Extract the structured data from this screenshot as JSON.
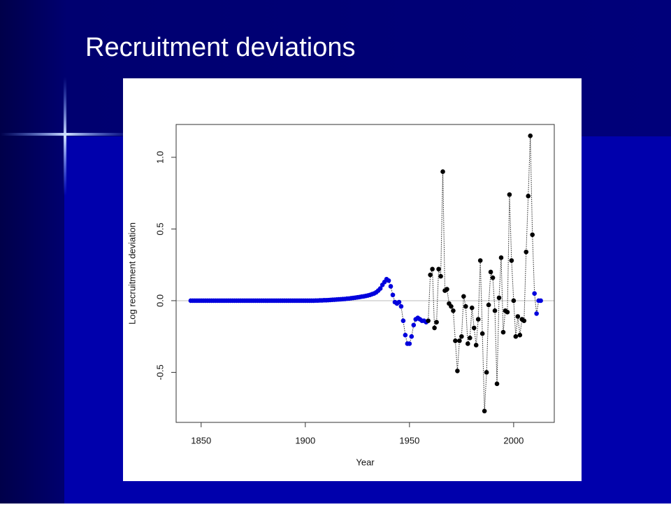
{
  "chart_data": {
    "type": "scatter",
    "title": "Recruitment deviations",
    "xlabel": "Year",
    "ylabel": "Log recruitment deviation",
    "xlim": [
      1838,
      2019.5
    ],
    "ylim": [
      -0.849,
      1.229
    ],
    "xticks": [
      1850,
      1900,
      1950,
      2000
    ],
    "yticks": [
      -0.5,
      {
        "value": 0,
        "label": "0.0"
      },
      0.5,
      {
        "value": 1,
        "label": "1.0"
      }
    ],
    "series": [
      {
        "color": "#0000dd",
        "x": [
          1845,
          1846,
          1847,
          1848,
          1849,
          1850,
          1851,
          1852,
          1853,
          1854,
          1855,
          1856,
          1857,
          1858,
          1859,
          1860,
          1861,
          1862,
          1863,
          1864,
          1865,
          1866,
          1867,
          1868,
          1869,
          1870,
          1871,
          1872,
          1873,
          1874,
          1875,
          1876,
          1877,
          1878,
          1879,
          1880,
          1881,
          1882,
          1883,
          1884,
          1885,
          1886,
          1887,
          1888,
          1889,
          1890,
          1891,
          1892,
          1893,
          1894,
          1895,
          1896,
          1897,
          1898,
          1899,
          1900,
          1901,
          1902,
          1903,
          1904,
          1905,
          1906,
          1907,
          1908,
          1909,
          1910,
          1911,
          1912,
          1913,
          1914,
          1915,
          1916,
          1917,
          1918,
          1919,
          1920,
          1921,
          1922,
          1923,
          1924,
          1925,
          1926,
          1927,
          1928,
          1929,
          1930,
          1931,
          1932,
          1933,
          1934,
          1935,
          1936,
          1937,
          1938,
          1939,
          1940,
          1941,
          1942,
          1943,
          1944,
          1945,
          1946,
          1947,
          1948,
          1949,
          1950,
          1951,
          1952,
          1953,
          1954,
          1955,
          1956,
          1957,
          1958
        ],
        "values": [
          0,
          0,
          0,
          0,
          0,
          0,
          0,
          0,
          0,
          0,
          0,
          0,
          0,
          0,
          0,
          0,
          0,
          0,
          0,
          0,
          0,
          0,
          0,
          0,
          0,
          0,
          0,
          0,
          0,
          0,
          0,
          0,
          0,
          0,
          0,
          0,
          0,
          0,
          0,
          0,
          0,
          0,
          0,
          0,
          0,
          0,
          0,
          0,
          0,
          0,
          0,
          0,
          0,
          0,
          0,
          0,
          0,
          0,
          0,
          0,
          0.001,
          0.001,
          0.002,
          0.002,
          0.003,
          0.003,
          0.004,
          0.005,
          0.006,
          0.007,
          0.008,
          0.009,
          0.01,
          0.011,
          0.012,
          0.014,
          0.015,
          0.017,
          0.019,
          0.021,
          0.023,
          0.025,
          0.028,
          0.03,
          0.033,
          0.036,
          0.04,
          0.045,
          0.05,
          0.058,
          0.07,
          0.085,
          0.11,
          0.13,
          0.15,
          0.14,
          0.1,
          0.04,
          -0.01,
          -0.02,
          -0.01,
          -0.04,
          -0.14,
          -0.24,
          -0.3,
          -0.3,
          -0.25,
          -0.17,
          -0.13,
          -0.12,
          -0.13,
          -0.14,
          -0.14,
          -0.15
        ]
      },
      {
        "color": "#000000",
        "x": [
          1959,
          1960,
          1961,
          1962,
          1963,
          1964,
          1965,
          1966,
          1967,
          1968,
          1969,
          1970,
          1971,
          1972,
          1973,
          1974,
          1975,
          1976,
          1977,
          1978,
          1979,
          1980,
          1981,
          1982,
          1983,
          1984,
          1985,
          1986,
          1987,
          1988,
          1989,
          1990,
          1991,
          1992,
          1993,
          1994,
          1995,
          1996,
          1997,
          1998,
          1999,
          2000,
          2001,
          2002,
          2003,
          2004,
          2005,
          2006,
          2007,
          2008,
          2009
        ],
        "values": [
          -0.14,
          0.18,
          0.22,
          -0.19,
          -0.15,
          0.22,
          0.17,
          0.9,
          0.07,
          0.08,
          -0.02,
          -0.04,
          -0.07,
          -0.28,
          -0.49,
          -0.28,
          -0.25,
          0.03,
          -0.04,
          -0.3,
          -0.26,
          -0.05,
          -0.19,
          -0.31,
          -0.13,
          0.28,
          -0.23,
          -0.77,
          -0.5,
          -0.03,
          0.2,
          0.16,
          -0.07,
          -0.58,
          0.02,
          0.3,
          -0.22,
          -0.07,
          -0.08,
          0.74,
          0.28,
          0,
          -0.25,
          -0.11,
          -0.24,
          -0.13,
          -0.14,
          0.34,
          0.73,
          1.15,
          0.46
        ]
      },
      {
        "color": "#0000dd",
        "x": [
          2010,
          2011,
          2012,
          2013
        ],
        "values": [
          0.05,
          -0.09,
          0,
          0
        ]
      }
    ]
  }
}
